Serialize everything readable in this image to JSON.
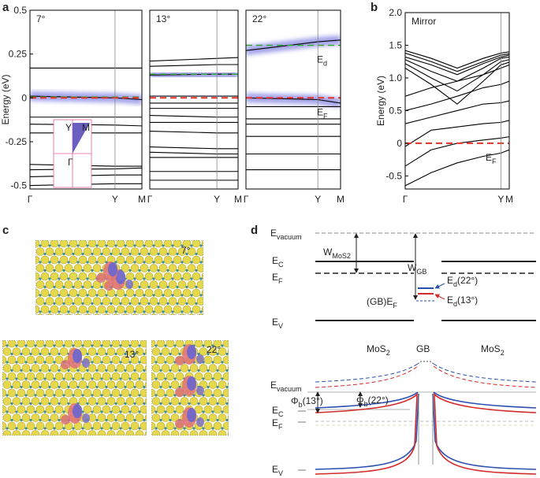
{
  "chart_data": [
    {
      "type": "line",
      "title": "7°",
      "ylabel": "Energy (eV)",
      "color": "#000000",
      "x": [
        0,
        0.76,
        1
      ],
      "xlim": [
        0,
        1
      ],
      "xticks": [
        {
          "value": 0,
          "label": "Γ"
        },
        {
          "value": 0.76,
          "label": "Y"
        },
        {
          "value": 1,
          "label": "M"
        }
      ],
      "ylim": [
        -0.52,
        0.5
      ],
      "yticks": [
        0.5,
        0.25,
        0,
        -0.25,
        -0.5
      ],
      "series": [
        {
          "values": [
            0.17,
            0.17,
            0.17
          ]
        },
        {
          "values": [
            0.01,
            0.0,
            -0.01
          ],
          "glow": true
        },
        {
          "values": [
            -0.11,
            -0.11,
            -0.11
          ]
        },
        {
          "values": [
            -0.15,
            -0.155,
            -0.16
          ]
        },
        {
          "values": [
            -0.2,
            -0.2,
            -0.2
          ]
        },
        {
          "values": [
            -0.38,
            -0.39,
            -0.39
          ]
        },
        {
          "values": [
            -0.41,
            -0.405,
            -0.4
          ]
        },
        {
          "values": [
            -0.45,
            -0.44,
            -0.44
          ]
        },
        {
          "values": [
            -0.5,
            -0.49,
            -0.49
          ]
        }
      ],
      "reference_lines": [
        {
          "value": 0.005,
          "color": "#3aa63a"
        },
        {
          "value": 0,
          "color": "#e8302a"
        }
      ],
      "inset": {
        "labels": [
          "Y",
          "M",
          "Γ"
        ]
      }
    },
    {
      "type": "line",
      "title": "13°",
      "color": "#000000",
      "x": [
        0,
        0.76,
        1
      ],
      "xlim": [
        0,
        1
      ],
      "xticks": [
        {
          "value": 0,
          "label": "Γ"
        },
        {
          "value": 0.76,
          "label": "Y"
        },
        {
          "value": 1,
          "label": "M"
        }
      ],
      "ylim": [
        -0.52,
        0.5
      ],
      "series": [
        {
          "values": [
            0.21,
            0.225,
            0.23
          ]
        },
        {
          "values": [
            0.18,
            0.19,
            0.19
          ]
        },
        {
          "values": [
            0.13,
            0.135,
            0.135
          ],
          "glow": true
        },
        {
          "values": [
            0.01,
            0.01,
            0.01
          ]
        },
        {
          "values": [
            -0.03,
            -0.03,
            -0.03
          ]
        },
        {
          "values": [
            -0.06,
            -0.06,
            -0.06
          ]
        },
        {
          "values": [
            -0.1,
            -0.11,
            -0.11
          ]
        },
        {
          "values": [
            -0.14,
            -0.14,
            -0.14
          ]
        },
        {
          "values": [
            -0.19,
            -0.2,
            -0.2
          ]
        },
        {
          "values": [
            -0.28,
            -0.29,
            -0.29
          ]
        },
        {
          "values": [
            -0.31,
            -0.32,
            -0.32
          ]
        },
        {
          "values": [
            -0.34,
            -0.34,
            -0.34
          ]
        },
        {
          "values": [
            -0.42,
            -0.42,
            -0.42
          ]
        },
        {
          "values": [
            -0.47,
            -0.47,
            -0.47
          ]
        }
      ],
      "reference_lines": [
        {
          "value": 0.135,
          "color": "#3aa63a"
        },
        {
          "value": 0,
          "color": "#e8302a"
        }
      ]
    },
    {
      "type": "line",
      "title": "22°",
      "color": "#000000",
      "x": [
        0,
        0.76,
        1
      ],
      "xlim": [
        0,
        1
      ],
      "xticks": [
        {
          "value": 0,
          "label": "Γ"
        },
        {
          "value": 0.76,
          "label": "Y"
        },
        {
          "value": 1,
          "label": "M"
        }
      ],
      "ylim": [
        -0.52,
        0.5
      ],
      "series": [
        {
          "values": [
            0.27,
            0.32,
            0.33
          ],
          "glow": true
        },
        {
          "values": [
            0.0,
            -0.01,
            -0.03
          ],
          "glow": true
        },
        {
          "values": [
            -0.05,
            -0.05,
            -0.05
          ]
        },
        {
          "values": [
            -0.12,
            -0.12,
            -0.12
          ]
        },
        {
          "values": [
            -0.15,
            -0.15,
            -0.15
          ]
        },
        {
          "values": [
            -0.22,
            -0.22,
            -0.22
          ]
        },
        {
          "values": [
            -0.32,
            -0.32,
            -0.32
          ]
        },
        {
          "values": [
            -0.41,
            -0.41,
            -0.41
          ]
        }
      ],
      "reference_lines": [
        {
          "value": 0.3,
          "color": "#3aa63a",
          "label": {
            "parts": [
              "E",
              "d"
            ],
            "color": "#3aa63a"
          }
        },
        {
          "value": 0,
          "color": "#e8302a",
          "label": {
            "parts": [
              "E",
              "F"
            ],
            "color": "#e8302a"
          }
        }
      ]
    },
    {
      "type": "line",
      "title": "Mirror",
      "ylabel": "Energy (eV)",
      "color": "#000000",
      "x": [
        0,
        0.25,
        0.5,
        0.75,
        0.92,
        1
      ],
      "xlim": [
        0,
        1
      ],
      "xticks": [
        {
          "value": 0,
          "label": "Γ"
        },
        {
          "value": 0.92,
          "label": "Y"
        },
        {
          "value": 1,
          "label": "M"
        }
      ],
      "ylim": [
        -0.7,
        2.0
      ],
      "yticks": [
        {
          "value": 2,
          "label": "2.0"
        },
        {
          "value": 1.5,
          "label": "1.5"
        },
        {
          "value": 1,
          "label": "1.0"
        },
        {
          "value": 0.5,
          "label": "0.5"
        },
        0,
        -0.5
      ],
      "series": [
        {
          "values": [
            1.42,
            1.3,
            1.15,
            1.3,
            1.38,
            1.4
          ]
        },
        {
          "values": [
            1.38,
            1.25,
            1.1,
            1.25,
            1.35,
            1.37
          ]
        },
        {
          "values": [
            1.32,
            1.2,
            1.05,
            1.22,
            1.32,
            1.35
          ]
        },
        {
          "values": [
            1.28,
            1.1,
            0.95,
            1.15,
            1.3,
            1.32
          ]
        },
        {
          "values": [
            1.22,
            1.0,
            0.8,
            1.05,
            1.25,
            1.28
          ]
        },
        {
          "values": [
            1.15,
            0.9,
            0.6,
            0.95,
            1.2,
            1.24
          ]
        },
        {
          "values": [
            0.72,
            0.85,
            0.95,
            1.05,
            1.15,
            1.2
          ]
        },
        {
          "values": [
            0.5,
            0.6,
            0.72,
            0.85,
            0.9,
            0.95
          ]
        },
        {
          "values": [
            0.3,
            0.4,
            0.5,
            0.6,
            0.62,
            0.65
          ]
        },
        {
          "values": [
            -0.05,
            0.2,
            0.25,
            0.3,
            0.32,
            0.35
          ]
        },
        {
          "values": [
            -0.35,
            -0.1,
            0.0,
            0.05,
            0.08,
            0.1
          ]
        },
        {
          "values": [
            -0.65,
            -0.45,
            -0.3,
            -0.2,
            -0.15,
            -0.1
          ]
        }
      ],
      "reference_lines": [
        {
          "value": 0,
          "color": "#e8302a",
          "label": {
            "parts": [
              "E",
              "F"
            ],
            "color": "#e8302a"
          }
        }
      ]
    }
  ],
  "panel_labels": [
    "a",
    "b",
    "c",
    "d"
  ],
  "panel_c": {
    "angles": [
      "7°",
      "13°",
      "22°"
    ]
  },
  "panel_d": {
    "top": [
      {
        "parts": [
          "E",
          "vacuum"
        ]
      },
      {
        "parts": [
          "W",
          "MoS2"
        ]
      },
      {
        "parts": [
          "E",
          "C"
        ]
      },
      {
        "parts": [
          "E",
          "F"
        ]
      },
      {
        "parts": [
          "W",
          "GB"
        ]
      },
      {
        "parts": [
          "E",
          "d",
          "(22°)"
        ],
        "color": "#2a4fb0"
      },
      {
        "parts": [
          "E",
          "d",
          "(13°)"
        ],
        "color": "#d42a2a"
      },
      {
        "parts": [
          "(GB)E",
          "F"
        ]
      },
      {
        "parts": [
          "E",
          "V"
        ]
      }
    ],
    "regions": [
      {
        "parts": [
          "MoS",
          "2"
        ]
      },
      {
        "parts": [
          "GB"
        ]
      },
      {
        "parts": [
          "MoS",
          "2"
        ]
      }
    ],
    "bottom": [
      {
        "parts": [
          "E",
          "vacuum"
        ],
        "color": "#2a4fb0"
      },
      {
        "parts": [
          "Φ",
          "b",
          "(13°)"
        ],
        "color": "#d42a2a"
      },
      {
        "parts": [
          "Φ",
          "b",
          "(22°)"
        ],
        "color": "#2a4fb0"
      },
      {
        "parts": [
          "E",
          "C"
        ],
        "color": "#2a4fb0"
      },
      {
        "parts": [
          "E",
          "F"
        ],
        "color": "#2a4fb0"
      },
      {
        "parts": [
          "E",
          "V"
        ],
        "color": "#2a4fb0"
      }
    ]
  }
}
